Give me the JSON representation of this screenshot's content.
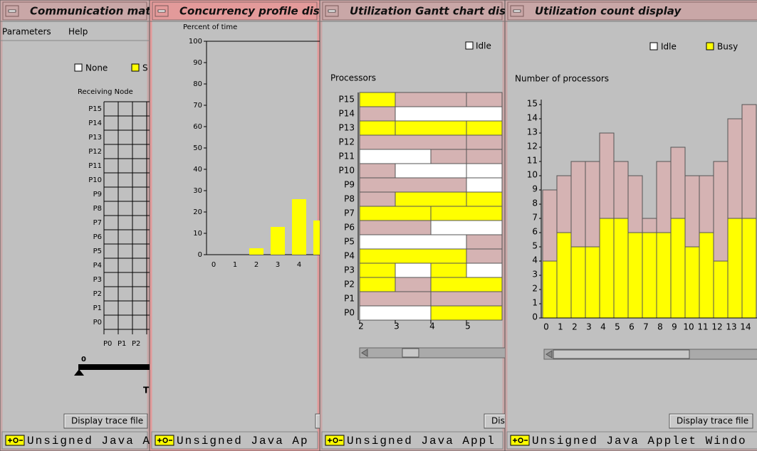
{
  "matrix_window": {
    "title": "Communication matrix disp",
    "menu": [
      "Parameters",
      "Help"
    ],
    "legend": [
      "None",
      "S"
    ],
    "axis_label": "Receiving Node",
    "rows": [
      "P15",
      "P14",
      "P13",
      "P12",
      "P11",
      "P10",
      "P9",
      "P8",
      "P7",
      "P6",
      "P5",
      "P4",
      "P3",
      "P2",
      "P1",
      "P0"
    ],
    "columns": [
      "P0",
      "P1",
      "P2"
    ],
    "slider_label": "0",
    "slider_caption": "T",
    "button": "Display trace file",
    "status": "Unsigned Java Apl"
  },
  "concurrency_window": {
    "title": "Concurrency profile display",
    "y_label": "Percent of time",
    "ylim": [
      0,
      100
    ],
    "yticks": [
      0,
      10,
      20,
      30,
      40,
      50,
      60,
      70,
      80,
      90,
      100
    ],
    "categories": [
      "0",
      "1",
      "2",
      "3",
      "4",
      null
    ],
    "values": [
      0,
      0,
      3,
      13,
      26,
      16
    ],
    "color": "#ffff00",
    "status": "Unsigned Java Ap"
  },
  "gantt_window": {
    "title": "Utilization Gantt chart display",
    "legend": [
      "Idle"
    ],
    "y_label": "Processors",
    "xlim": [
      2,
      6
    ],
    "xticks": [
      2,
      3,
      4,
      5
    ],
    "rows": [
      {
        "label": "P15",
        "segments": [
          {
            "start": 2,
            "end": 3,
            "color": "#ffff00"
          },
          {
            "start": 3,
            "end": 5,
            "color": "#d5b3b3"
          },
          {
            "start": 5,
            "end": 6,
            "color": "#d5b3b3"
          }
        ]
      },
      {
        "label": "P14",
        "segments": [
          {
            "start": 2,
            "end": 3,
            "color": "#d5b3b3"
          },
          {
            "start": 3,
            "end": 6,
            "color": "#ffffff"
          }
        ]
      },
      {
        "label": "P13",
        "segments": [
          {
            "start": 2,
            "end": 3,
            "color": "#ffff00"
          },
          {
            "start": 3,
            "end": 5,
            "color": "#ffff00"
          },
          {
            "start": 5,
            "end": 6,
            "color": "#ffff00"
          }
        ]
      },
      {
        "label": "P12",
        "segments": [
          {
            "start": 2,
            "end": 5,
            "color": "#d5b3b3"
          },
          {
            "start": 5,
            "end": 6,
            "color": "#d5b3b3"
          }
        ]
      },
      {
        "label": "P11",
        "segments": [
          {
            "start": 2,
            "end": 4,
            "color": "#ffffff"
          },
          {
            "start": 4,
            "end": 5,
            "color": "#d5b3b3"
          },
          {
            "start": 5,
            "end": 6,
            "color": "#d5b3b3"
          }
        ]
      },
      {
        "label": "P10",
        "segments": [
          {
            "start": 2,
            "end": 3,
            "color": "#d5b3b3"
          },
          {
            "start": 3,
            "end": 5,
            "color": "#ffffff"
          },
          {
            "start": 5,
            "end": 6,
            "color": "#ffffff"
          }
        ]
      },
      {
        "label": "P9",
        "segments": [
          {
            "start": 2,
            "end": 5,
            "color": "#d5b3b3"
          },
          {
            "start": 5,
            "end": 6,
            "color": "#ffffff"
          }
        ]
      },
      {
        "label": "P8",
        "segments": [
          {
            "start": 2,
            "end": 3,
            "color": "#d5b3b3"
          },
          {
            "start": 3,
            "end": 5,
            "color": "#ffff00"
          },
          {
            "start": 5,
            "end": 6,
            "color": "#ffff00"
          }
        ]
      },
      {
        "label": "P7",
        "segments": [
          {
            "start": 2,
            "end": 4,
            "color": "#ffff00"
          },
          {
            "start": 4,
            "end": 6,
            "color": "#ffff00"
          }
        ]
      },
      {
        "label": "P6",
        "segments": [
          {
            "start": 2,
            "end": 4,
            "color": "#d5b3b3"
          },
          {
            "start": 4,
            "end": 6,
            "color": "#ffffff"
          }
        ]
      },
      {
        "label": "P5",
        "segments": [
          {
            "start": 2,
            "end": 5,
            "color": "#ffffff"
          },
          {
            "start": 5,
            "end": 6,
            "color": "#d5b3b3"
          }
        ]
      },
      {
        "label": "P4",
        "segments": [
          {
            "start": 2,
            "end": 5,
            "color": "#ffff00"
          },
          {
            "start": 5,
            "end": 6,
            "color": "#d5b3b3"
          }
        ]
      },
      {
        "label": "P3",
        "segments": [
          {
            "start": 2,
            "end": 3,
            "color": "#ffff00"
          },
          {
            "start": 3,
            "end": 4,
            "color": "#ffffff"
          },
          {
            "start": 4,
            "end": 5,
            "color": "#ffff00"
          },
          {
            "start": 5,
            "end": 6,
            "color": "#ffffff"
          }
        ]
      },
      {
        "label": "P2",
        "segments": [
          {
            "start": 2,
            "end": 3,
            "color": "#ffff00"
          },
          {
            "start": 3,
            "end": 4,
            "color": "#d5b3b3"
          },
          {
            "start": 4,
            "end": 6,
            "color": "#ffff00"
          }
        ]
      },
      {
        "label": "P1",
        "segments": [
          {
            "start": 2,
            "end": 4,
            "color": "#d5b3b3"
          },
          {
            "start": 4,
            "end": 6,
            "color": "#d5b3b3"
          }
        ]
      },
      {
        "label": "P0",
        "segments": [
          {
            "start": 2,
            "end": 4,
            "color": "#ffffff"
          },
          {
            "start": 4,
            "end": 6,
            "color": "#ffff00"
          }
        ]
      }
    ],
    "button": "Dis",
    "status": "Unsigned Java Appl"
  },
  "count_window": {
    "title": "Utilization count display",
    "legend": [
      {
        "label": "Idle",
        "color": "#ffffff"
      },
      {
        "label": "Busy",
        "color": "#ffff00"
      }
    ],
    "y_label": "Number of processors",
    "ylim": [
      0,
      15
    ],
    "yticks": [
      0,
      1,
      2,
      3,
      4,
      5,
      6,
      7,
      8,
      9,
      10,
      11,
      12,
      13,
      14,
      15
    ],
    "categories": [
      "0",
      "1",
      "2",
      "3",
      "4",
      "5",
      "6",
      "7",
      "8",
      "9",
      "10",
      "11",
      "12",
      "13",
      "14"
    ],
    "series": [
      {
        "color": "#ffff00",
        "values": [
          4,
          6,
          5,
          5,
          7,
          7,
          6,
          6,
          6,
          7,
          5,
          6,
          4,
          7,
          7
        ]
      },
      {
        "color": "#d5b3b3",
        "values": [
          5,
          4,
          6,
          6,
          6,
          4,
          4,
          1,
          5,
          5,
          5,
          4,
          7,
          7,
          8
        ]
      }
    ],
    "button": "Display trace file",
    "status": "Unsigned Java Applet Windo"
  }
}
